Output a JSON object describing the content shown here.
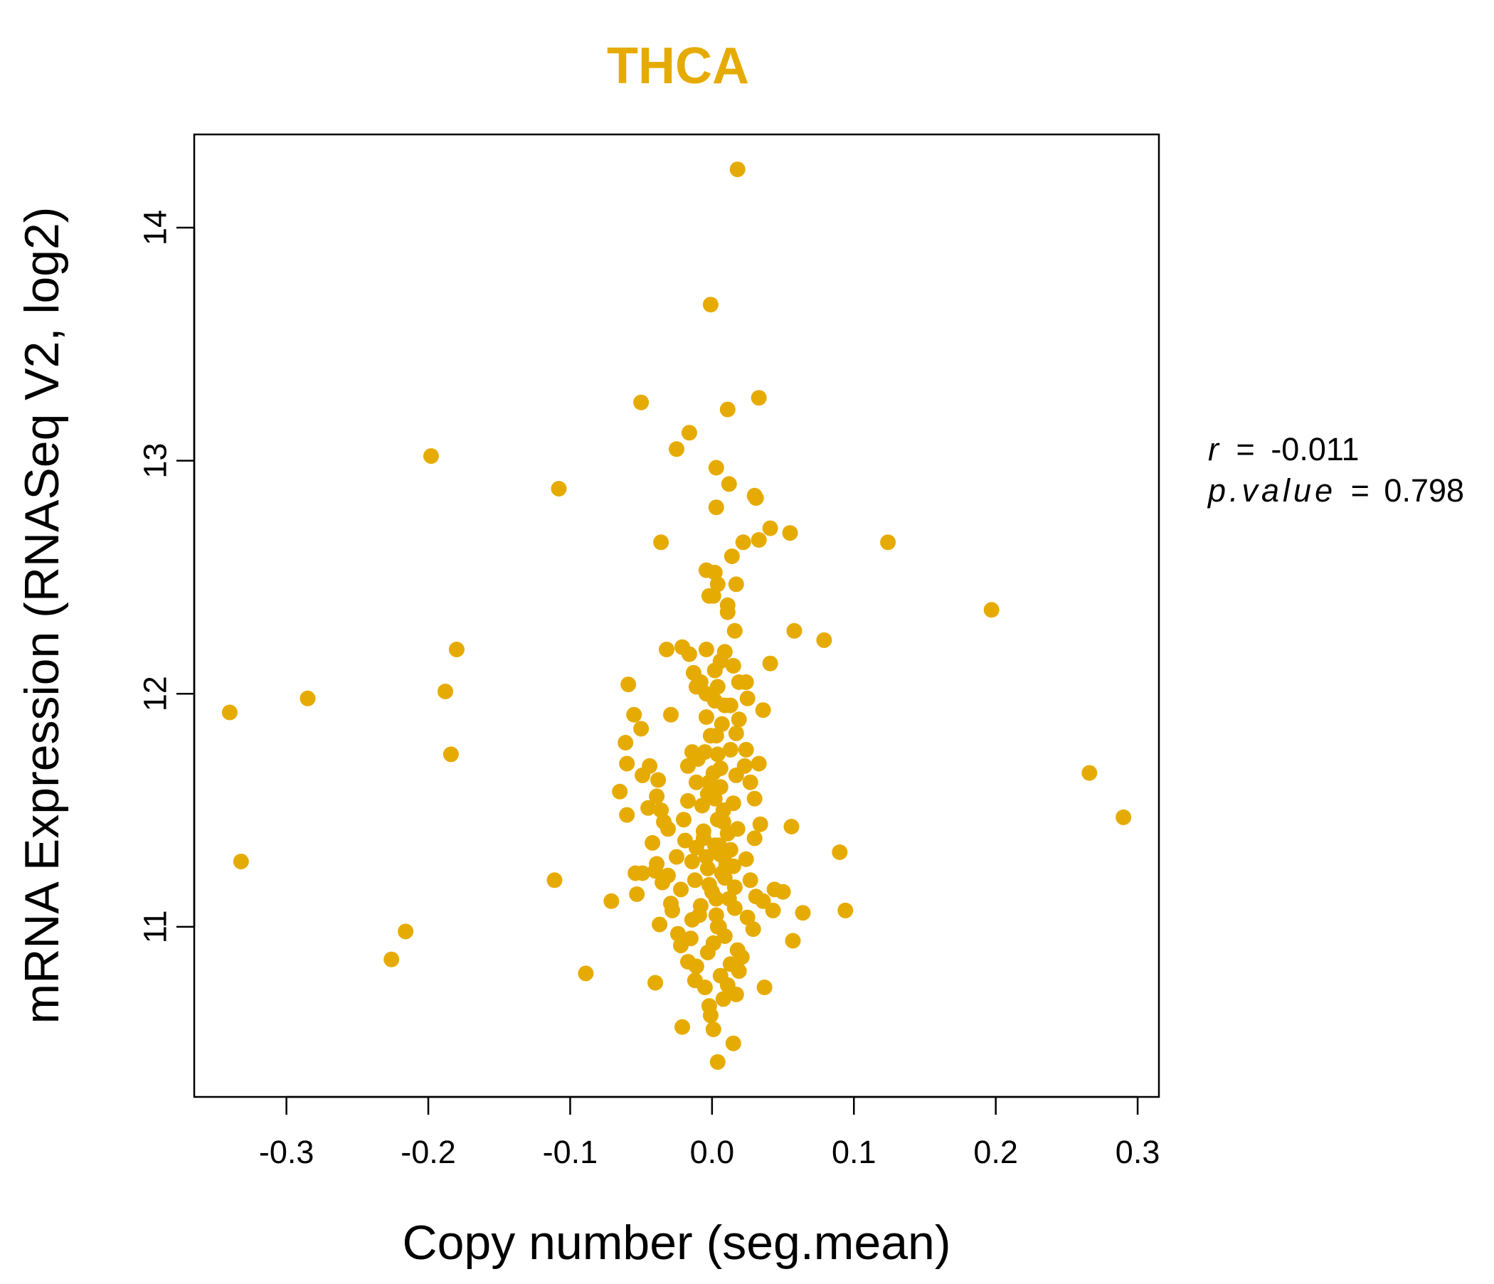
{
  "chart_data": {
    "type": "scatter",
    "title": "THCA",
    "xlabel": "Copy number (seg.mean)",
    "ylabel": "mRNA Expression (RNASeq V2, log2)",
    "xlim": [
      -0.365,
      0.315
    ],
    "ylim": [
      10.27,
      14.4
    ],
    "xticks": [
      -0.3,
      -0.2,
      -0.1,
      0.0,
      0.1,
      0.2,
      0.3
    ],
    "xtick_labels": [
      "-0.3",
      "-0.2",
      "-0.1",
      "0.0",
      "0.1",
      "0.2",
      "0.3"
    ],
    "yticks": [
      11,
      12,
      13,
      14
    ],
    "ytick_labels": [
      "11",
      "12",
      "13",
      "14"
    ],
    "point_color": "#E6AB02",
    "title_color": "#E6AB02",
    "stats": {
      "r_label": "r",
      "r_value": "-0.011",
      "p_label": "p.value",
      "p_value": "0.798",
      "eq": "="
    },
    "points": [
      [
        0.018,
        14.25
      ],
      [
        -0.001,
        13.67
      ],
      [
        -0.05,
        13.25
      ],
      [
        0.011,
        13.22
      ],
      [
        0.033,
        13.27
      ],
      [
        -0.016,
        13.12
      ],
      [
        -0.025,
        13.05
      ],
      [
        0.003,
        12.97
      ],
      [
        0.012,
        12.9
      ],
      [
        0.03,
        12.85
      ],
      [
        0.031,
        12.84
      ],
      [
        0.003,
        12.8
      ],
      [
        0.041,
        12.71
      ],
      [
        0.055,
        12.69
      ],
      [
        0.022,
        12.65
      ],
      [
        0.033,
        12.66
      ],
      [
        -0.036,
        12.65
      ],
      [
        0.014,
        12.59
      ],
      [
        -0.004,
        12.53
      ],
      [
        0.002,
        12.52
      ],
      [
        0.004,
        12.47
      ],
      [
        0.017,
        12.47
      ],
      [
        -0.002,
        12.42
      ],
      [
        0.001,
        12.42
      ],
      [
        0.011,
        12.38
      ],
      [
        0.011,
        12.35
      ],
      [
        0.016,
        12.27
      ],
      [
        0.058,
        12.27
      ],
      [
        0.079,
        12.23
      ],
      [
        -0.021,
        12.2
      ],
      [
        -0.032,
        12.19
      ],
      [
        -0.004,
        12.19
      ],
      [
        0.009,
        12.18
      ],
      [
        -0.016,
        12.17
      ],
      [
        0.006,
        12.14
      ],
      [
        0.015,
        12.12
      ],
      [
        0.041,
        12.13
      ],
      [
        -0.013,
        12.09
      ],
      [
        0.002,
        12.1
      ],
      [
        -0.008,
        12.05
      ],
      [
        0.019,
        12.05
      ],
      [
        0.024,
        12.05
      ],
      [
        -0.059,
        12.04
      ],
      [
        -0.011,
        12.03
      ],
      [
        0.004,
        12.03
      ],
      [
        -0.004,
        12.0
      ],
      [
        0.025,
        11.98
      ],
      [
        0.002,
        11.97
      ],
      [
        0.013,
        11.95
      ],
      [
        0.036,
        11.93
      ],
      [
        -0.029,
        11.91
      ],
      [
        -0.055,
        11.91
      ],
      [
        -0.004,
        11.9
      ],
      [
        0.019,
        11.89
      ],
      [
        0.007,
        11.87
      ],
      [
        -0.05,
        11.85
      ],
      [
        0.017,
        11.83
      ],
      [
        -0.001,
        11.82
      ],
      [
        -0.061,
        11.79
      ],
      [
        0.013,
        11.76
      ],
      [
        0.024,
        11.76
      ],
      [
        -0.014,
        11.75
      ],
      [
        -0.005,
        11.75
      ],
      [
        0.004,
        11.74
      ],
      [
        -0.01,
        11.72
      ],
      [
        -0.06,
        11.7
      ],
      [
        0.033,
        11.7
      ],
      [
        -0.044,
        11.69
      ],
      [
        -0.017,
        11.69
      ],
      [
        0.023,
        11.69
      ],
      [
        0.001,
        11.66
      ],
      [
        0.017,
        11.65
      ],
      [
        -0.049,
        11.65
      ],
      [
        -0.038,
        11.63
      ],
      [
        -0.011,
        11.62
      ],
      [
        0.027,
        11.62
      ],
      [
        -0.065,
        11.58
      ],
      [
        0.006,
        11.6
      ],
      [
        -0.003,
        11.57
      ],
      [
        -0.039,
        11.56
      ],
      [
        0.03,
        11.55
      ],
      [
        -0.017,
        11.54
      ],
      [
        0.015,
        11.53
      ],
      [
        -0.045,
        11.51
      ],
      [
        -0.036,
        11.5
      ],
      [
        0.008,
        11.5
      ],
      [
        -0.06,
        11.48
      ],
      [
        -0.02,
        11.46
      ],
      [
        0.004,
        11.46
      ],
      [
        -0.034,
        11.45
      ],
      [
        0.034,
        11.44
      ],
      [
        0.056,
        11.43
      ],
      [
        -0.031,
        11.42
      ],
      [
        0.018,
        11.42
      ],
      [
        -0.006,
        11.41
      ],
      [
        0.011,
        11.4
      ],
      [
        0.03,
        11.38
      ],
      [
        -0.019,
        11.37
      ],
      [
        -0.042,
        11.36
      ],
      [
        0.002,
        11.35
      ],
      [
        -0.011,
        11.34
      ],
      [
        0.013,
        11.33
      ],
      [
        0.09,
        11.32
      ],
      [
        0.006,
        11.31
      ],
      [
        -0.025,
        11.3
      ],
      [
        0.024,
        11.29
      ],
      [
        -0.014,
        11.28
      ],
      [
        -0.039,
        11.27
      ],
      [
        0.015,
        11.26
      ],
      [
        -0.04,
        11.24
      ],
      [
        -0.049,
        11.23
      ],
      [
        -0.054,
        11.23
      ],
      [
        0.007,
        11.23
      ],
      [
        -0.031,
        11.22
      ],
      [
        0.009,
        11.21
      ],
      [
        -0.012,
        11.2
      ],
      [
        0.027,
        11.2
      ],
      [
        -0.111,
        11.2
      ],
      [
        -0.035,
        11.19
      ],
      [
        -0.002,
        11.18
      ],
      [
        0.016,
        11.17
      ],
      [
        -0.022,
        11.16
      ],
      [
        0.044,
        11.16
      ],
      [
        0.05,
        11.15
      ],
      [
        -0.053,
        11.14
      ],
      [
        0.031,
        11.13
      ],
      [
        0.003,
        11.12
      ],
      [
        -0.071,
        11.11
      ],
      [
        0.036,
        11.11
      ],
      [
        -0.029,
        11.1
      ],
      [
        -0.008,
        11.09
      ],
      [
        0.016,
        11.08
      ],
      [
        0.094,
        11.07
      ],
      [
        -0.028,
        11.07
      ],
      [
        0.043,
        11.07
      ],
      [
        0.064,
        11.06
      ],
      [
        0.003,
        11.05
      ],
      [
        0.025,
        11.04
      ],
      [
        -0.014,
        11.03
      ],
      [
        -0.037,
        11.01
      ],
      [
        0.005,
        11.0
      ],
      [
        0.029,
        10.99
      ],
      [
        -0.024,
        10.97
      ],
      [
        0.009,
        10.96
      ],
      [
        -0.216,
        10.98
      ],
      [
        -0.015,
        10.95
      ],
      [
        0.057,
        10.94
      ],
      [
        0.001,
        10.93
      ],
      [
        -0.022,
        10.92
      ],
      [
        0.018,
        10.9
      ],
      [
        -0.003,
        10.89
      ],
      [
        0.021,
        10.87
      ],
      [
        -0.226,
        10.86
      ],
      [
        -0.017,
        10.85
      ],
      [
        0.013,
        10.84
      ],
      [
        -0.011,
        10.83
      ],
      [
        0.019,
        10.81
      ],
      [
        -0.089,
        10.8
      ],
      [
        0.006,
        10.79
      ],
      [
        -0.04,
        10.76
      ],
      [
        -0.012,
        10.77
      ],
      [
        0.037,
        10.74
      ],
      [
        -0.005,
        10.74
      ],
      [
        0.011,
        10.75
      ],
      [
        0.017,
        10.71
      ],
      [
        0.008,
        10.69
      ],
      [
        -0.002,
        10.66
      ],
      [
        -0.021,
        10.57
      ],
      [
        -0.001,
        10.62
      ],
      [
        0.001,
        10.56
      ],
      [
        0.015,
        10.5
      ],
      [
        0.004,
        10.42
      ],
      [
        -0.34,
        11.92
      ],
      [
        -0.285,
        11.98
      ],
      [
        -0.188,
        12.01
      ],
      [
        -0.18,
        12.19
      ],
      [
        -0.184,
        11.74
      ],
      [
        -0.332,
        11.28
      ],
      [
        -0.198,
        13.02
      ],
      [
        -0.108,
        12.88
      ],
      [
        0.124,
        12.65
      ],
      [
        0.197,
        12.36
      ],
      [
        0.266,
        11.66
      ],
      [
        0.29,
        11.47
      ],
      [
        0.0,
        11.15
      ],
      [
        0.005,
        11.35
      ],
      [
        -0.003,
        11.25
      ],
      [
        0.008,
        11.45
      ],
      [
        0.002,
        11.55
      ],
      [
        -0.006,
        11.38
      ],
      [
        0.01,
        11.27
      ],
      [
        -0.009,
        11.05
      ],
      [
        0.012,
        11.12
      ],
      [
        0.004,
        11.0
      ],
      [
        -0.002,
        11.62
      ],
      [
        0.006,
        11.68
      ],
      [
        -0.007,
        11.52
      ],
      [
        0.003,
        11.82
      ],
      [
        0.009,
        11.95
      ],
      [
        -0.004,
        11.3
      ]
    ]
  }
}
